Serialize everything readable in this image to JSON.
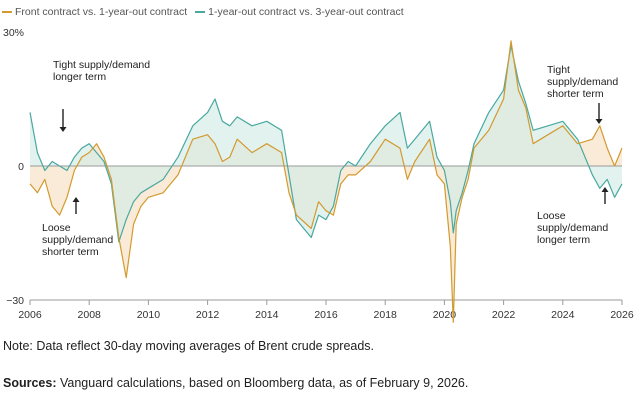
{
  "colors": {
    "front_vs_1y": "#d29a2f",
    "one_vs_3y": "#4aa8a0",
    "fill_front_high": "#f6e3c6",
    "fill_one_high": "#d5ece7",
    "overlap": "#dfe6d4"
  },
  "legend": [
    {
      "label": "Front contract vs. 1-year-out contract",
      "color_key": "front_vs_1y"
    },
    {
      "label": "1-year-out contract vs. 3-year-out contract",
      "color_key": "one_vs_3y"
    }
  ],
  "chart_data": {
    "type": "line",
    "title": "",
    "xlabel": "",
    "ylabel": "",
    "xlim": [
      2006,
      2026
    ],
    "ylim": [
      -30,
      30
    ],
    "x_ticks": [
      "2006",
      "2008",
      "2010",
      "2012",
      "2014",
      "2016",
      "2018",
      "2020",
      "2022",
      "2024",
      "2026"
    ],
    "y_ticks": [
      {
        "value": 30,
        "label": "30%"
      },
      {
        "value": 0,
        "label": "0"
      },
      {
        "value": -30,
        "label": "−30"
      }
    ],
    "series": [
      {
        "name": "Front contract vs. 1-year-out contract",
        "color_key": "front_vs_1y",
        "x": [
          2006.0,
          2006.25,
          2006.5,
          2006.75,
          2007.0,
          2007.25,
          2007.5,
          2007.75,
          2008.0,
          2008.25,
          2008.5,
          2008.75,
          2009.0,
          2009.25,
          2009.5,
          2009.75,
          2010.0,
          2010.5,
          2011.0,
          2011.5,
          2012.0,
          2012.25,
          2012.5,
          2012.75,
          2013.0,
          2013.5,
          2014.0,
          2014.5,
          2014.75,
          2015.0,
          2015.5,
          2015.75,
          2016.0,
          2016.25,
          2016.5,
          2016.75,
          2017.0,
          2017.5,
          2018.0,
          2018.5,
          2018.75,
          2019.0,
          2019.5,
          2019.75,
          2020.0,
          2020.2,
          2020.3,
          2020.4,
          2020.6,
          2020.8,
          2021.0,
          2021.5,
          2022.0,
          2022.25,
          2022.5,
          2022.75,
          2023.0,
          2023.5,
          2024.0,
          2024.5,
          2025.0,
          2025.25,
          2025.5,
          2025.75,
          2026.0
        ],
        "y": [
          -4,
          -6,
          -3,
          -9,
          -11,
          -7,
          -1,
          2,
          3,
          5,
          2,
          -3,
          -16,
          -25,
          -13,
          -9,
          -7,
          -6,
          -2,
          6,
          7,
          5,
          1,
          2,
          6,
          3,
          5,
          3,
          -6,
          -11,
          -14,
          -8,
          -10,
          -11,
          -4,
          -2,
          -2,
          1,
          6,
          4,
          -3,
          1,
          6,
          -2,
          -4,
          -18,
          -35,
          -13,
          -7,
          -3,
          4,
          8,
          15,
          28,
          17,
          13,
          5,
          7,
          9,
          5,
          6,
          9,
          4,
          0,
          4
        ]
      },
      {
        "name": "1-year-out contract vs. 3-year-out contract",
        "color_key": "one_vs_3y",
        "x": [
          2006.0,
          2006.25,
          2006.5,
          2006.75,
          2007.0,
          2007.25,
          2007.5,
          2007.75,
          2008.0,
          2008.25,
          2008.5,
          2008.75,
          2009.0,
          2009.25,
          2009.5,
          2009.75,
          2010.0,
          2010.5,
          2011.0,
          2011.5,
          2012.0,
          2012.25,
          2012.5,
          2012.75,
          2013.0,
          2013.5,
          2014.0,
          2014.5,
          2014.75,
          2015.0,
          2015.5,
          2015.75,
          2016.0,
          2016.25,
          2016.5,
          2016.75,
          2017.0,
          2017.5,
          2018.0,
          2018.5,
          2018.75,
          2019.0,
          2019.5,
          2019.75,
          2020.0,
          2020.2,
          2020.3,
          2020.4,
          2020.6,
          2020.8,
          2021.0,
          2021.5,
          2022.0,
          2022.25,
          2022.5,
          2022.75,
          2023.0,
          2023.5,
          2024.0,
          2024.5,
          2025.0,
          2025.25,
          2025.5,
          2025.75,
          2026.0
        ],
        "y": [
          12,
          3,
          -1,
          1,
          0,
          -1,
          2,
          4,
          5,
          3,
          1,
          -4,
          -17,
          -12,
          -8,
          -6,
          -5,
          -3,
          2,
          9,
          12,
          15,
          10,
          9,
          11,
          9,
          10,
          8,
          -2,
          -12,
          -16,
          -11,
          -12,
          -9,
          -1,
          1,
          0,
          5,
          9,
          12,
          4,
          6,
          10,
          2,
          -1,
          -8,
          -15,
          -10,
          -6,
          -1,
          5,
          12,
          17,
          27,
          19,
          14,
          8,
          9,
          10,
          6,
          -2,
          -5,
          -3,
          -7,
          -4
        ]
      }
    ],
    "annotations": [
      {
        "text": [
          "Tight supply/demand",
          "longer term"
        ],
        "arrow": "down"
      },
      {
        "text": [
          "Loose",
          "supply/demand",
          "shorter term"
        ],
        "arrow": "up"
      },
      {
        "text": [
          "Tight",
          "supply/demand",
          "shorter term"
        ],
        "arrow": "down"
      },
      {
        "text": [
          "Loose",
          "supply/demand",
          "longer term"
        ],
        "arrow": "up"
      }
    ]
  },
  "note": "Note: Data reflect 30-day moving averages of Brent crude spreads.",
  "sources": {
    "label": "Sources:",
    "text": " Vanguard calculations, based on Bloomberg data, as of February 9, 2026."
  }
}
